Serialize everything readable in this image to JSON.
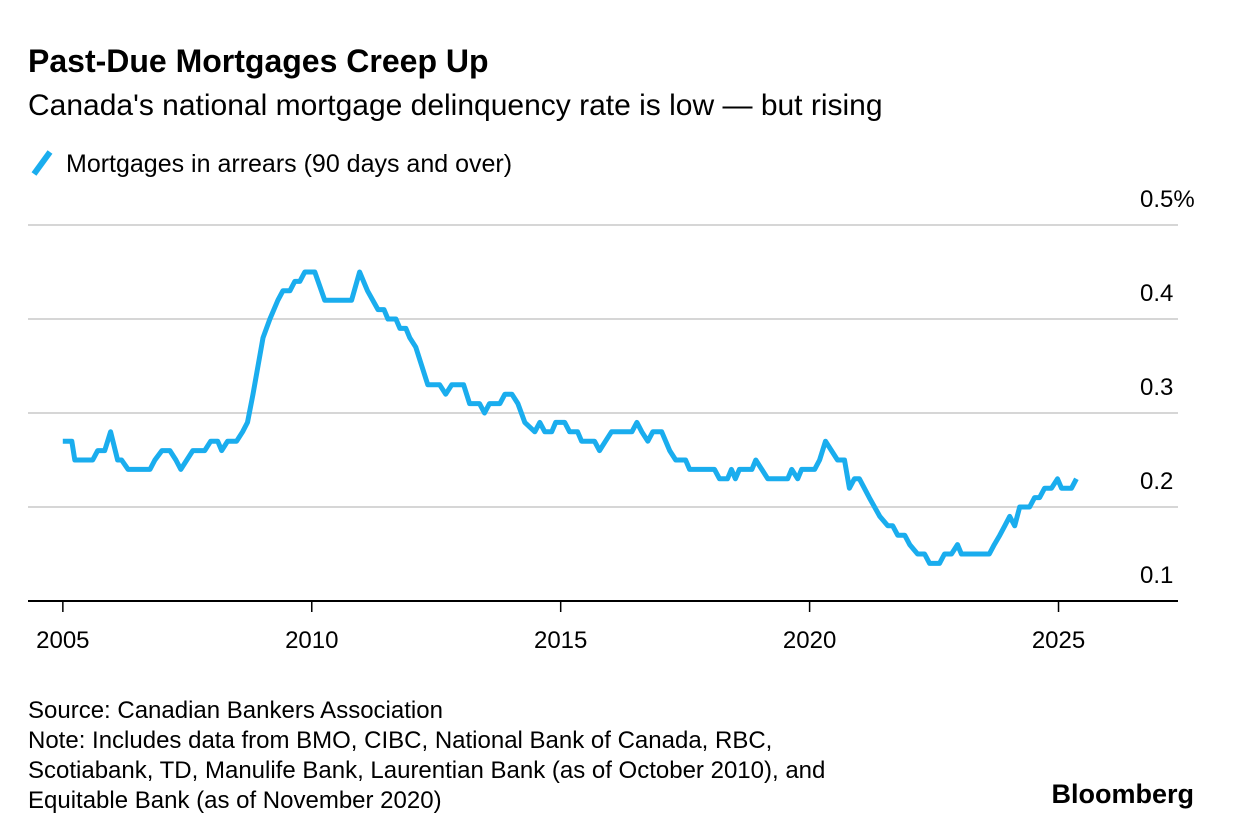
{
  "chart_data": {
    "type": "line",
    "title": "Past-Due Mortgages Creep Up",
    "subtitle": "Canada's national mortgage delinquency rate is low — but rising",
    "series": [
      {
        "name": "Mortgages in arrears (90 days and over)",
        "color": "#1aadee",
        "x": [
          2005.0,
          2005.18,
          2005.24,
          2005.6,
          2005.7,
          2005.84,
          2005.96,
          2006.1,
          2006.18,
          2006.31,
          2006.75,
          2006.85,
          2006.99,
          2007.15,
          2007.27,
          2007.37,
          2007.49,
          2007.61,
          2007.85,
          2007.97,
          2008.11,
          2008.19,
          2008.31,
          2008.49,
          2008.61,
          2008.71,
          2008.82,
          2008.92,
          2009.02,
          2009.16,
          2009.32,
          2009.42,
          2009.56,
          2009.66,
          2009.76,
          2009.86,
          2010.06,
          2010.26,
          2010.8,
          2010.96,
          2011.12,
          2011.33,
          2011.45,
          2011.53,
          2011.69,
          2011.77,
          2011.89,
          2011.97,
          2012.09,
          2012.21,
          2012.33,
          2012.57,
          2012.69,
          2012.81,
          2013.05,
          2013.17,
          2013.37,
          2013.47,
          2013.57,
          2013.78,
          2013.88,
          2014.02,
          2014.14,
          2014.28,
          2014.48,
          2014.58,
          2014.68,
          2014.82,
          2014.9,
          2015.08,
          2015.18,
          2015.34,
          2015.42,
          2015.68,
          2015.78,
          2015.9,
          2016.02,
          2016.43,
          2016.53,
          2016.63,
          2016.75,
          2016.85,
          2017.03,
          2017.19,
          2017.31,
          2017.51,
          2017.59,
          2018.09,
          2018.19,
          2018.35,
          2018.43,
          2018.51,
          2018.59,
          2018.84,
          2018.92,
          2019.04,
          2019.16,
          2019.56,
          2019.64,
          2019.76,
          2019.84,
          2020.1,
          2020.2,
          2020.32,
          2020.44,
          2020.56,
          2020.7,
          2020.8,
          2020.9,
          2021.0,
          2021.2,
          2021.41,
          2021.57,
          2021.67,
          2021.77,
          2021.91,
          2022.01,
          2022.17,
          2022.31,
          2022.41,
          2022.61,
          2022.71,
          2022.85,
          2022.97,
          2023.05,
          2023.61,
          2023.71,
          2023.82,
          2023.92,
          2024.02,
          2024.12,
          2024.22,
          2024.42,
          2024.52,
          2024.62,
          2024.72,
          2024.86,
          2024.98,
          2025.06,
          2025.26,
          2025.36
        ],
        "values": [
          0.27,
          0.27,
          0.25,
          0.25,
          0.26,
          0.26,
          0.28,
          0.25,
          0.25,
          0.24,
          0.24,
          0.25,
          0.26,
          0.26,
          0.25,
          0.24,
          0.25,
          0.26,
          0.26,
          0.27,
          0.27,
          0.26,
          0.27,
          0.27,
          0.28,
          0.29,
          0.32,
          0.35,
          0.38,
          0.4,
          0.42,
          0.43,
          0.43,
          0.44,
          0.44,
          0.45,
          0.45,
          0.42,
          0.42,
          0.45,
          0.43,
          0.41,
          0.41,
          0.4,
          0.4,
          0.39,
          0.39,
          0.38,
          0.37,
          0.35,
          0.33,
          0.33,
          0.32,
          0.33,
          0.33,
          0.31,
          0.31,
          0.3,
          0.31,
          0.31,
          0.32,
          0.32,
          0.31,
          0.29,
          0.28,
          0.29,
          0.28,
          0.28,
          0.29,
          0.29,
          0.28,
          0.28,
          0.27,
          0.27,
          0.26,
          0.27,
          0.28,
          0.28,
          0.29,
          0.28,
          0.27,
          0.28,
          0.28,
          0.26,
          0.25,
          0.25,
          0.24,
          0.24,
          0.23,
          0.23,
          0.24,
          0.23,
          0.24,
          0.24,
          0.25,
          0.24,
          0.23,
          0.23,
          0.24,
          0.23,
          0.24,
          0.24,
          0.25,
          0.27,
          0.26,
          0.25,
          0.25,
          0.22,
          0.23,
          0.23,
          0.21,
          0.19,
          0.18,
          0.18,
          0.17,
          0.17,
          0.16,
          0.15,
          0.15,
          0.14,
          0.14,
          0.15,
          0.15,
          0.16,
          0.15,
          0.15,
          0.16,
          0.17,
          0.18,
          0.19,
          0.18,
          0.2,
          0.2,
          0.21,
          0.21,
          0.22,
          0.22,
          0.23,
          0.22,
          0.22,
          0.23
        ]
      }
    ],
    "xlim": [
      2004.3,
      2027.4
    ],
    "xticks": [
      2005,
      2010,
      2015,
      2020,
      2025
    ],
    "ylim": [
      0.1,
      0.5
    ],
    "yticks": [
      0.1,
      0.2,
      0.3,
      0.4,
      {
        "value": 0.5,
        "label": "0.5%"
      }
    ],
    "grid": true,
    "source": "Source: Canadian Bankers Association",
    "note": [
      "Note: Includes data from BMO, CIBC, National Bank of Canada, RBC,",
      "Scotiabank, TD, Manulife Bank, Laurentian Bank (as of October 2010), and",
      "Equitable Bank (as of November 2020)"
    ],
    "brand": "Bloomberg"
  }
}
